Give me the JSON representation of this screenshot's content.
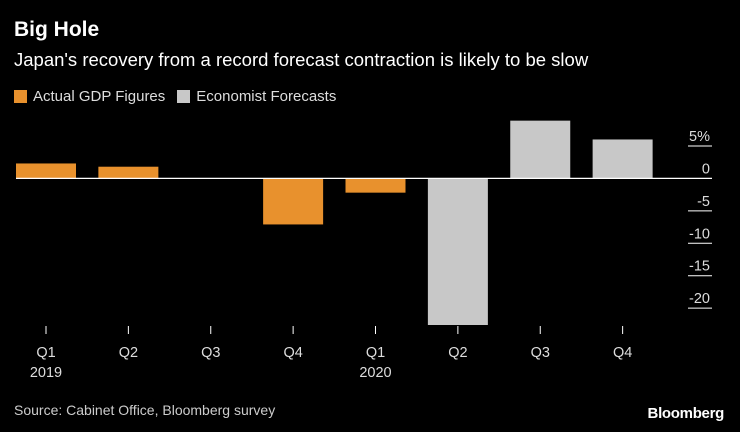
{
  "chart_data": {
    "type": "bar",
    "title": "Big Hole",
    "subtitle": "Japan's recovery from a record forecast contraction is likely to be slow",
    "categories": [
      "Q1",
      "Q2",
      "Q3",
      "Q4",
      "Q1",
      "Q2",
      "Q3",
      "Q4"
    ],
    "years": [
      {
        "label": "2019",
        "category_index": 0
      },
      {
        "label": "2020",
        "category_index": 4
      }
    ],
    "series": [
      {
        "name": "Actual GDP Figures",
        "color": "#e8912d",
        "values": [
          2.3,
          1.8,
          null,
          -7.1,
          -2.2,
          null,
          null,
          null
        ]
      },
      {
        "name": "Economist Forecasts",
        "color": "#c8c8c8",
        "values": [
          null,
          null,
          null,
          null,
          null,
          -22.6,
          8.9,
          6.0
        ]
      }
    ],
    "y_ticks": [
      "5%",
      "0",
      "-5",
      "-10",
      "-15",
      "-20"
    ],
    "y_tick_values": [
      5,
      0,
      -5,
      -10,
      -15,
      -20
    ],
    "ylim": [
      -22.6,
      9
    ],
    "legend_position": "top-left",
    "source": "Source: Cabinet Office, Bloomberg survey",
    "brand": "Bloomberg"
  }
}
